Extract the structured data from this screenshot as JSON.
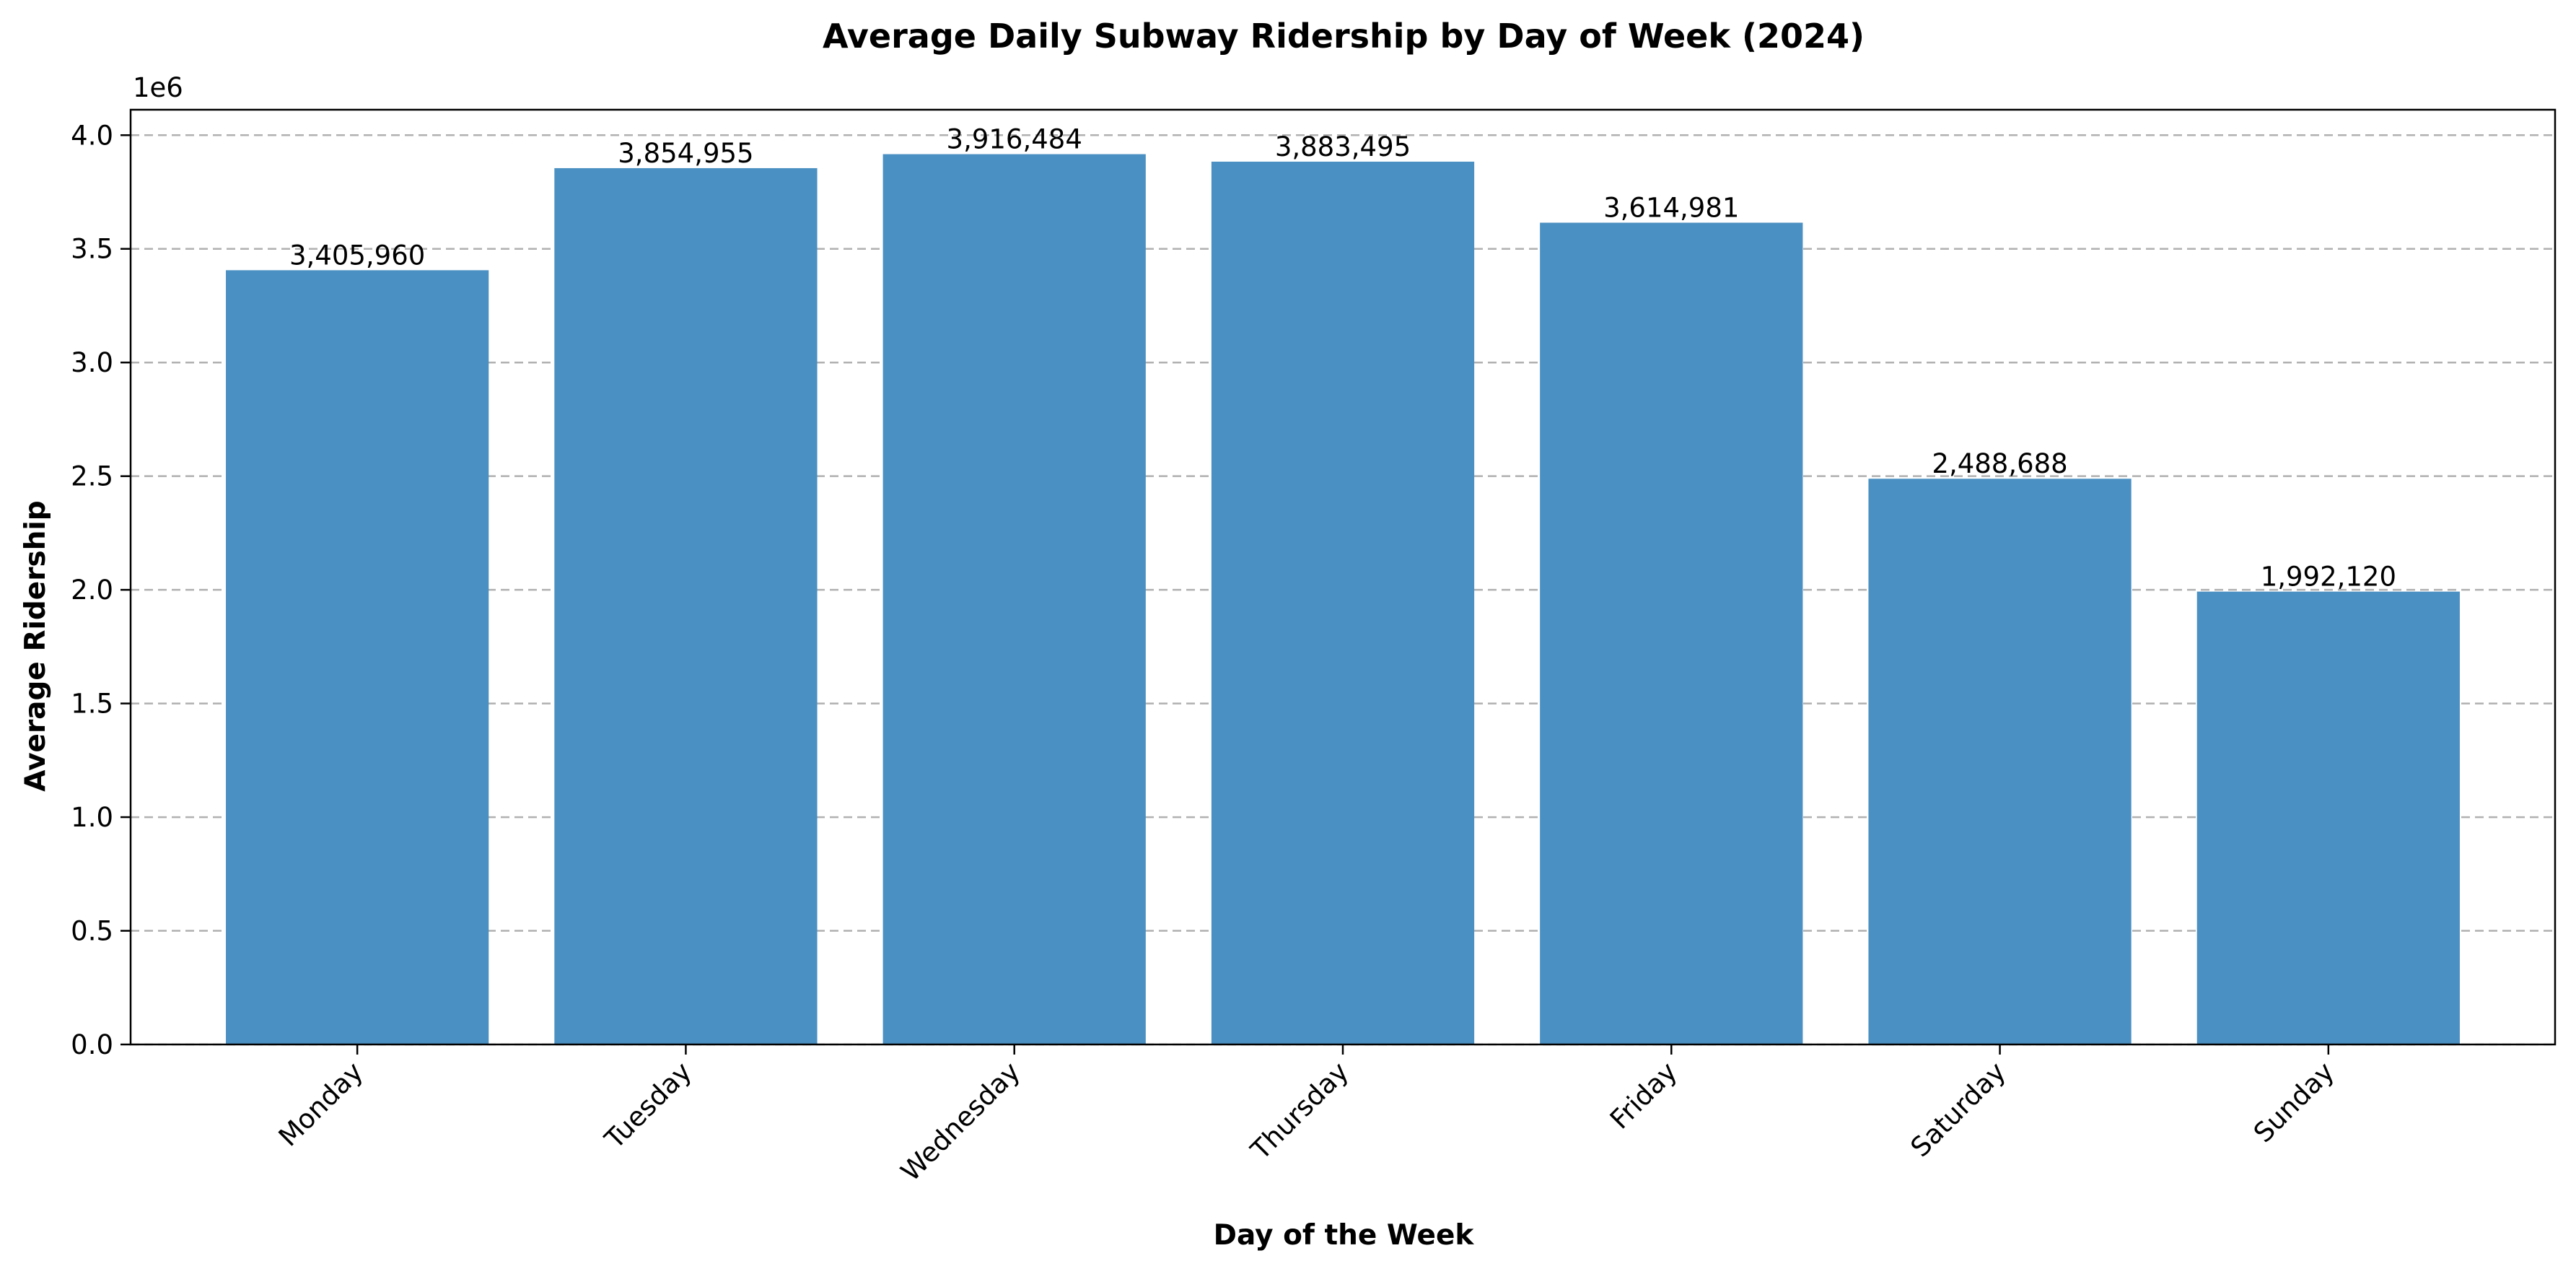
{
  "chart_data": {
    "type": "bar",
    "title": "Average Daily Subway Ridership by Day of Week (2024)",
    "xlabel": "Day of the Week",
    "ylabel": "Average Ridership",
    "y_offset_label": "1e6",
    "categories": [
      "Monday",
      "Tuesday",
      "Wednesday",
      "Thursday",
      "Friday",
      "Saturday",
      "Sunday"
    ],
    "values": [
      3405960,
      3854955,
      3916484,
      3883495,
      3614981,
      2488688,
      1992120
    ],
    "value_labels": [
      "3,405,960",
      "3,854,955",
      "3,916,484",
      "3,883,495",
      "3,614,981",
      "2,488,688",
      "1,992,120"
    ],
    "ylim": [
      0,
      4112000
    ],
    "yticks": [
      0,
      500000,
      1000000,
      1500000,
      2000000,
      2500000,
      3000000,
      3500000,
      4000000
    ],
    "ytick_labels": [
      "0.0",
      "0.5",
      "1.0",
      "1.5",
      "2.0",
      "2.5",
      "3.0",
      "3.5",
      "4.0"
    ],
    "grid": "y-dashed",
    "bar_color": "#4a90c2",
    "xtick_rotation": -45
  }
}
